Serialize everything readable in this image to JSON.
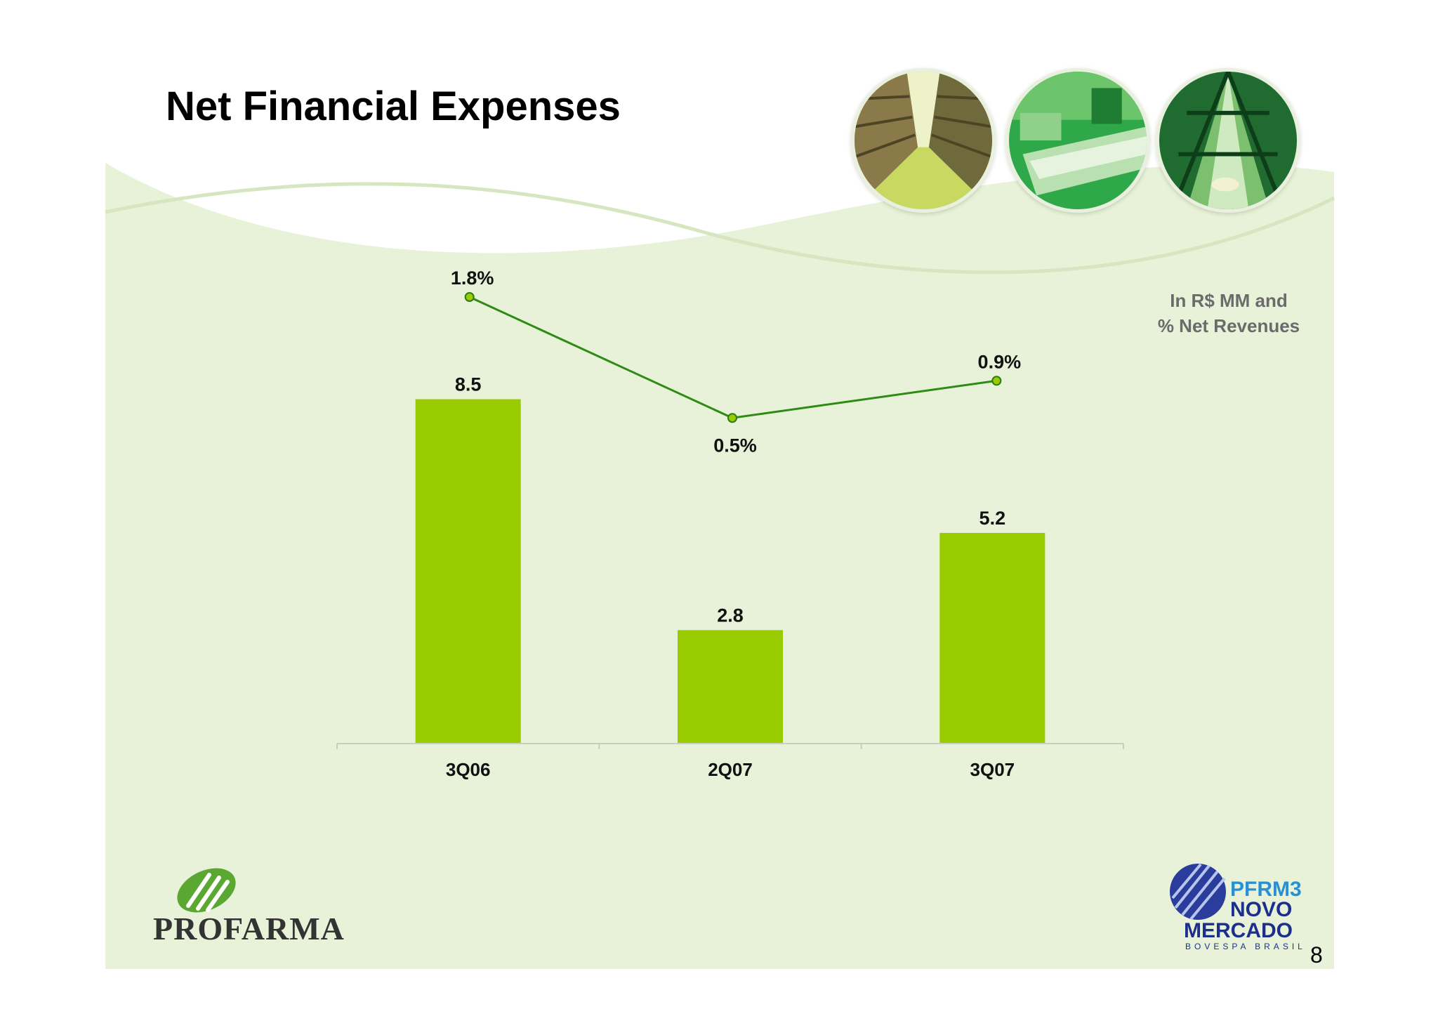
{
  "slide": {
    "title": "Net Financial Expenses",
    "unit_note_line1": "In R$ MM and",
    "unit_note_line2": "% Net Revenues",
    "page_number": "8",
    "background_color": "#e8f2d9",
    "accent_color": "#99cc00"
  },
  "logos": {
    "company": "PROFARMA",
    "ticker": "PFRM3",
    "market_line1": "NOVO",
    "market_line2": "MERCADO",
    "exchange": "BOVESPA BRASIL"
  },
  "photos": [
    {
      "name": "warehouse-photo"
    },
    {
      "name": "conveyor-photo"
    },
    {
      "name": "distribution-line-photo"
    }
  ],
  "chart_data": {
    "type": "bar",
    "title": "",
    "categories": [
      "3Q06",
      "2Q07",
      "3Q07"
    ],
    "series": [
      {
        "type": "bar",
        "values": [
          8.5,
          2.8,
          5.2
        ],
        "labels": [
          "8.5",
          "2.8",
          "5.2"
        ],
        "color": "#99cc00"
      },
      {
        "type": "line",
        "values": [
          1.8,
          0.5,
          0.9
        ],
        "labels": [
          "1.8%",
          "0.5%",
          "0.9%"
        ],
        "color": "#2e8b14",
        "marker_color": "#99cc00"
      }
    ],
    "ylim": [
      0,
      10
    ],
    "y2lim": [
      -3,
      2.6
    ],
    "grid": false,
    "legend": "none",
    "xlabel": "",
    "ylabel": ""
  }
}
